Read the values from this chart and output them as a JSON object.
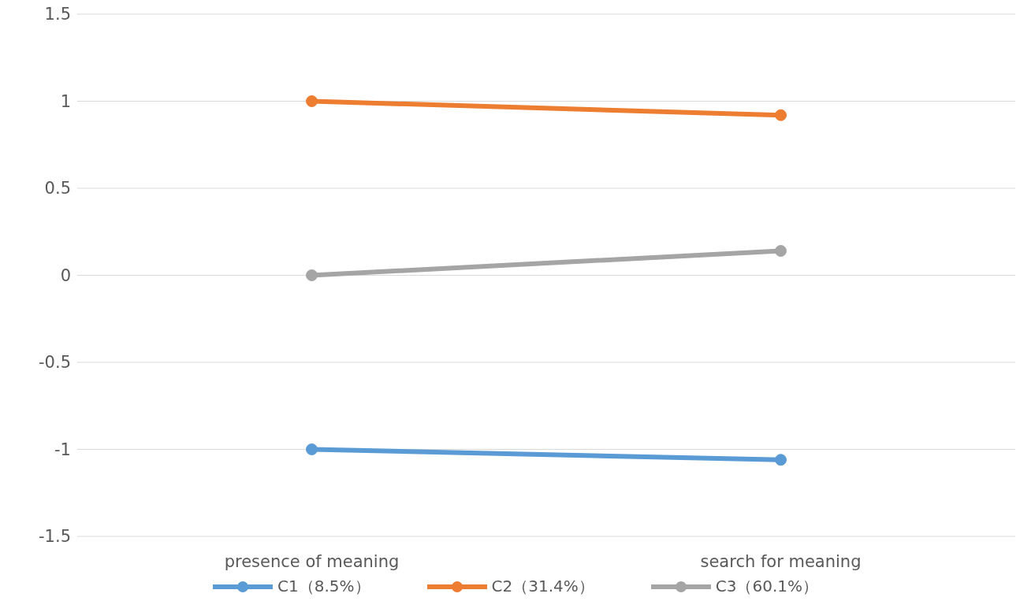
{
  "chart_data": {
    "type": "line",
    "categories": [
      "presence of meaning",
      "search for meaning"
    ],
    "series": [
      {
        "name": "C1（8.5%）",
        "color": "#5b9bd5",
        "values": [
          -1.0,
          -1.06
        ]
      },
      {
        "name": "C2（31.4%）",
        "color": "#ed7d31",
        "values": [
          1.0,
          0.92
        ]
      },
      {
        "name": "C3（60.1%）",
        "color": "#a5a5a5",
        "values": [
          0.0,
          0.14
        ]
      }
    ],
    "ylim": [
      -1.5,
      1.5
    ],
    "yticks": [
      -1.5,
      -1,
      -0.5,
      0,
      0.5,
      1,
      1.5
    ],
    "grid": "y",
    "legend": "bottom",
    "marker": "circle",
    "line_style": "solid"
  }
}
